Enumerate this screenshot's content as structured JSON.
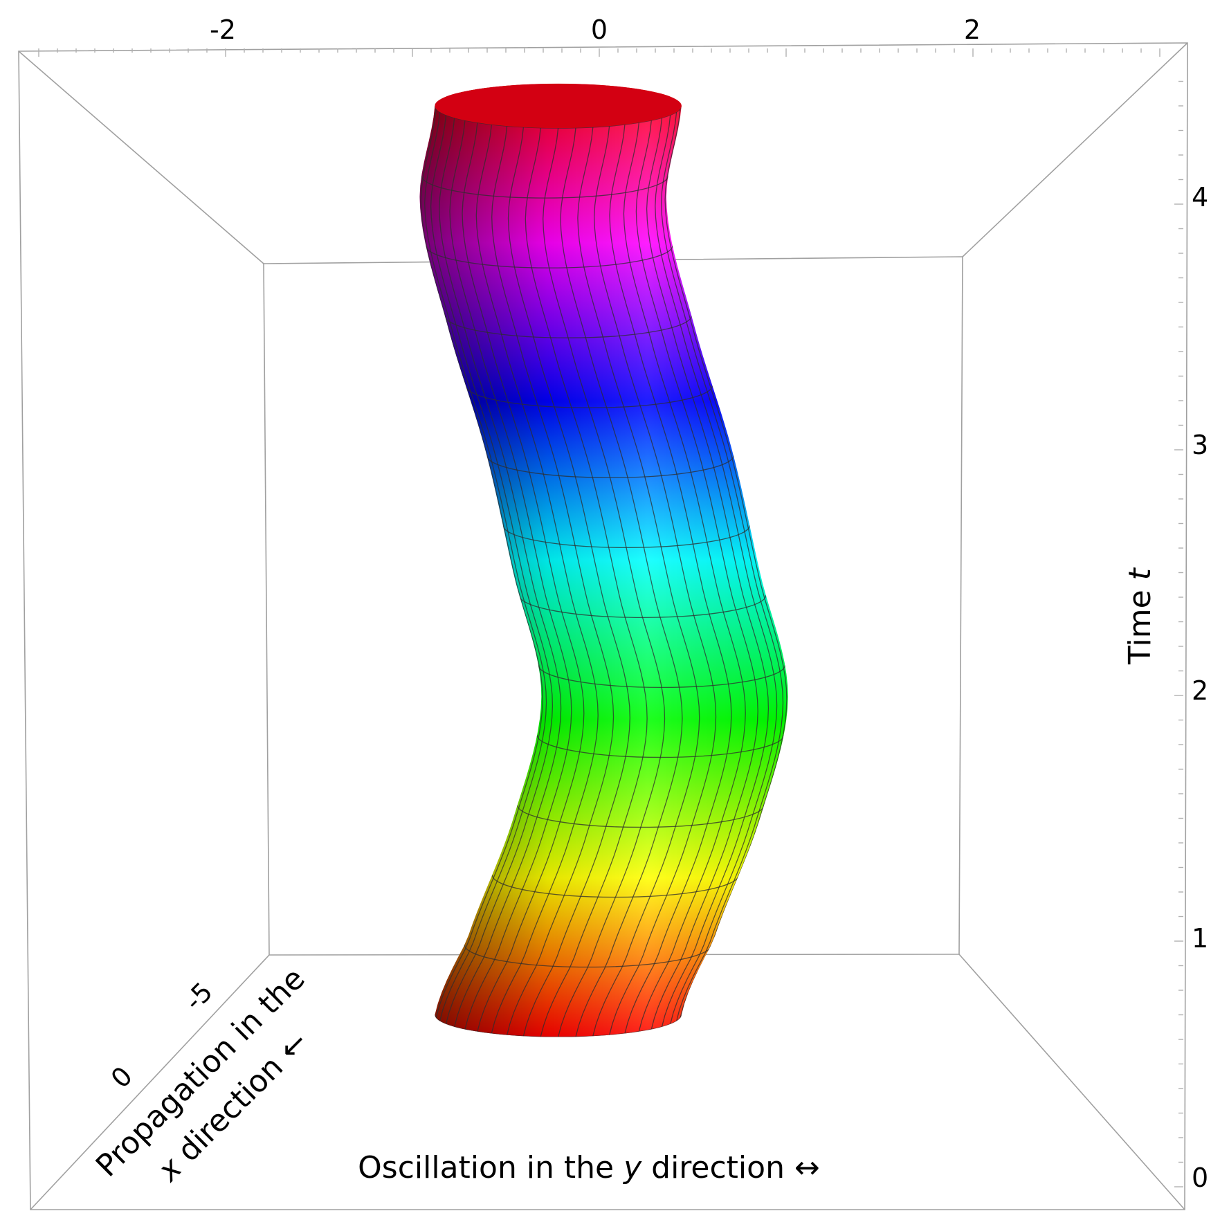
{
  "chart_data": {
    "type": "surface3d",
    "title": "",
    "axes": {
      "y": {
        "label_prefix": "Oscillation in the ",
        "label_var": "y",
        "label_suffix": " direction ↔",
        "ticks": [
          "-2",
          "0",
          "2"
        ],
        "range": [
          -3,
          3
        ]
      },
      "x": {
        "label_line1": "Propagation in the",
        "label_line2_var": "x",
        "label_line2_suffix": " direction ←",
        "ticks": [
          "-5",
          "0"
        ]
      },
      "t": {
        "label_prefix": "Time ",
        "label_var": "t",
        "ticks": [
          "0",
          "1",
          "2",
          "3",
          "4"
        ],
        "range": [
          0,
          4.5
        ]
      }
    },
    "surface": {
      "description": "tube whose cross-section centre oscillates sinusoidally in y as time increases",
      "tube_radius": 0.66,
      "centerline": [
        {
          "t": 0.7,
          "y": -0.22
        },
        {
          "t": 1.0,
          "y": -0.05
        },
        {
          "t": 1.5,
          "y": 0.2
        },
        {
          "t": 2.0,
          "y": 0.35
        },
        {
          "t": 2.5,
          "y": 0.2
        },
        {
          "t": 3.0,
          "y": 0.05
        },
        {
          "t": 3.5,
          "y": -0.15
        },
        {
          "t": 4.0,
          "y": -0.3
        },
        {
          "t": 4.4,
          "y": -0.22
        }
      ],
      "color_by_time": [
        "#ff0000",
        "#ffff00",
        "#00ff00",
        "#00ffff",
        "#0000ff",
        "#ff00ff",
        "#ff0000"
      ]
    },
    "grid": false,
    "box": true
  }
}
